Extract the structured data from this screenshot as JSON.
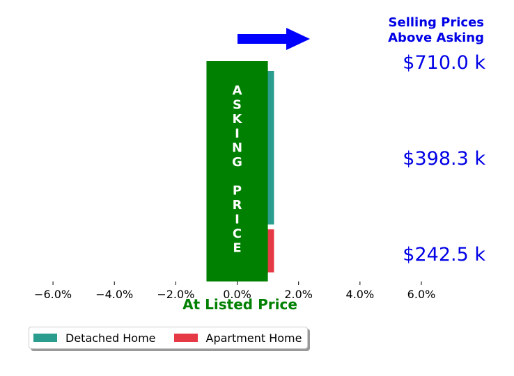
{
  "chart_data": {
    "type": "bar",
    "orientation": "horizontal",
    "header": [
      "Selling Prices",
      "Above Asking"
    ],
    "xlabel": "At Listed Price",
    "xlim": [
      -7.0,
      6.0
    ],
    "x_ticks": [
      -6,
      -4,
      -2,
      0,
      2,
      4,
      6
    ],
    "x_tick_labels": [
      "−6.0%",
      "−4.0%",
      "−2.0%",
      "0.0%",
      "2.0%",
      "4.0%",
      "6.0%"
    ],
    "price_labels": [
      "$710.0 k",
      "$398.3 k",
      "$242.5 k"
    ],
    "asking_band": {
      "label": "ASKING PRICE",
      "letters": [
        "A",
        "S",
        "K",
        "I",
        "N",
        "G",
        "",
        "P",
        "R",
        "I",
        "C",
        "E"
      ],
      "x_range": [
        -1.0,
        1.0
      ],
      "color": "#008000"
    },
    "series": [
      {
        "name": "Detached Home",
        "color": "#2a9d8f",
        "value": 1.2
      },
      {
        "name": "Apartment Home",
        "color": "#e63946",
        "value": 1.2
      }
    ],
    "legend_position": "bottom-left",
    "arrow_direction": "right",
    "arrow_color": "#0000ff",
    "grid": false
  }
}
